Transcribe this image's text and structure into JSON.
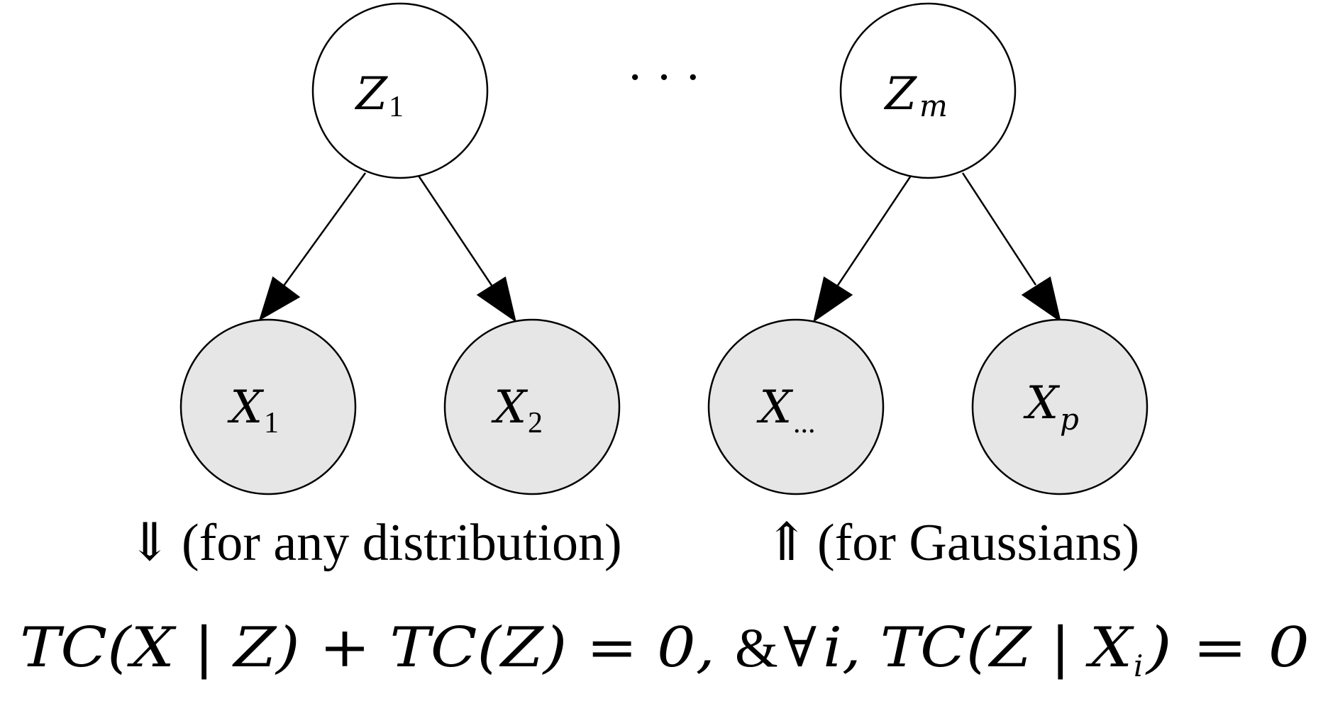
{
  "diagram": {
    "latent_nodes": [
      {
        "id": "Z1",
        "base": "Z",
        "sub": "1",
        "shaded": false
      },
      {
        "id": "Zm",
        "base": "Z",
        "sub": "m",
        "shaded": false
      }
    ],
    "latent_gap_label": "· · ·",
    "observed_nodes": [
      {
        "id": "X1",
        "base": "X",
        "sub": "1",
        "shaded": true
      },
      {
        "id": "X2",
        "base": "X",
        "sub": "2",
        "shaded": true
      },
      {
        "id": "Xdots",
        "base": "X",
        "sub": "...",
        "shaded": true
      },
      {
        "id": "Xp",
        "base": "X",
        "sub": "p",
        "shaded": true
      }
    ],
    "edges": [
      {
        "from": "Z1",
        "to": "X1"
      },
      {
        "from": "Z1",
        "to": "X2"
      },
      {
        "from": "Zm",
        "to": "Xdots"
      },
      {
        "from": "Zm",
        "to": "Xp"
      }
    ],
    "colors": {
      "observed_fill": "#e6e6e6",
      "latent_fill": "#ffffff",
      "stroke": "#000000"
    },
    "captions": {
      "down_arrow": "⇓",
      "down_text": "(for any distribution)",
      "up_arrow": "⇑",
      "up_text": "(for Gaussians)"
    },
    "formula": {
      "part1": "TC(X | Z) + TC(Z) = 0,",
      "amp": "&",
      "forall": "∀",
      "part2": "i, TC(Z | X",
      "part2_sub": "i",
      "part3": ") = 0"
    }
  }
}
